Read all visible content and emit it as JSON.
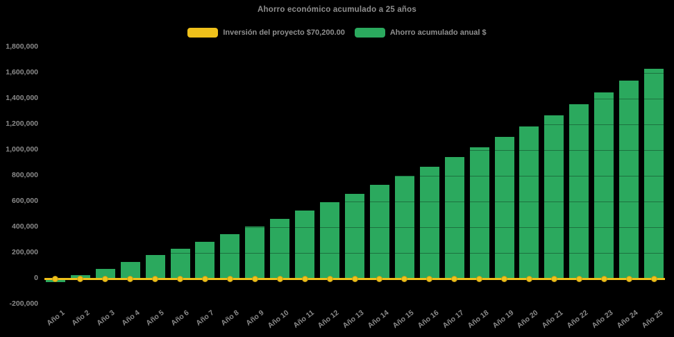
{
  "chart_data": {
    "type": "bar",
    "title": "Ahorro económico acumulado a 25 años",
    "categories": [
      "Año 1",
      "Año 2",
      "Año 3",
      "Año 4",
      "Año 5",
      "Año 6",
      "Año 7",
      "Año 8",
      "Año 9",
      "Año 10",
      "Año 11",
      "Año 12",
      "Año 13",
      "Año 14",
      "Año 15",
      "Año 16",
      "Año 17",
      "Año 18",
      "Año 19",
      "Año 20",
      "Año 21",
      "Año 22",
      "Año 23",
      "Año 24",
      "Año 25"
    ],
    "series": [
      {
        "name": "Inversión del proyecto $70,200.00",
        "type": "line",
        "color": "#efc11b",
        "marker": "circle",
        "values": [
          0,
          0,
          0,
          0,
          0,
          0,
          0,
          0,
          0,
          0,
          0,
          0,
          0,
          0,
          0,
          0,
          0,
          0,
          0,
          0,
          0,
          0,
          0,
          0,
          0
        ]
      },
      {
        "name": "Ahorro acumulado anual $",
        "type": "bar",
        "color": "#2ba95e",
        "values": [
          -27000,
          25000,
          76000,
          130000,
          182000,
          235000,
          289000,
          346000,
          405000,
          467000,
          532000,
          595000,
          662000,
          730000,
          800000,
          872000,
          948000,
          1024000,
          1103000,
          1184000,
          1272000,
          1357000,
          1449000,
          1542000,
          1633000
        ]
      }
    ],
    "ylim": [
      -200000,
      1800000
    ],
    "ytick_step": 200000,
    "ytick_labels": [
      "1,800,000",
      "1,600,000",
      "1,400,000",
      "1,200,000",
      "1,000,000",
      "800,000",
      "600,000",
      "400,000",
      "200,000",
      "0",
      "-200,000"
    ],
    "xlabel": "",
    "ylabel": "",
    "legend_position": "top-center",
    "grid": "off",
    "background_color": "#000000",
    "text_color": "#8f8f8f"
  }
}
